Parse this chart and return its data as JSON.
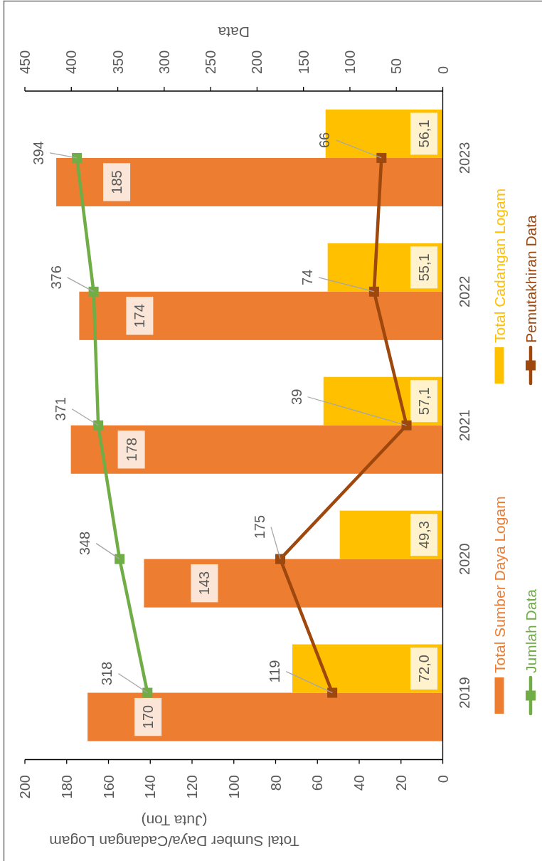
{
  "chart_data": {
    "type": "bar",
    "orientation": "horizontal",
    "categories": [
      "2023",
      "2022",
      "2021",
      "2020",
      "2019"
    ],
    "xlabel": "Total Sumber Daya/Cadangan Logam (Juta Ton)",
    "x2label": "Data",
    "xlim": [
      200,
      0
    ],
    "xticks": [
      0,
      20,
      40,
      60,
      80,
      100,
      120,
      140,
      160,
      180,
      200
    ],
    "x2lim": [
      450,
      0
    ],
    "x2ticks": [
      0,
      50,
      100,
      150,
      200,
      250,
      300,
      350,
      400,
      450
    ],
    "legend": "right",
    "marker": "square",
    "series": [
      {
        "name": "Total Sumber Daya Logam",
        "color": "#ed7d31",
        "values": [
          185,
          174,
          178,
          143,
          170
        ],
        "value_labels": [
          "185",
          "174",
          "178",
          "143",
          "170"
        ]
      },
      {
        "name": "Total Cadangan Logam",
        "color": "#ffc000",
        "values": [
          56.1,
          55.1,
          57.1,
          49.3,
          72.0
        ],
        "value_labels": [
          "56,1",
          "55,1",
          "57,1",
          "49,3",
          "72,0"
        ]
      },
      {
        "name": "Jumlah Data",
        "type": "line",
        "axis": "x2",
        "color": "#70ad47",
        "values": [
          394,
          376,
          371,
          348,
          318
        ],
        "value_labels": [
          "394",
          "376",
          "371",
          "348",
          "318"
        ]
      },
      {
        "name": "Pemutakhiran Data",
        "type": "line",
        "axis": "x2",
        "color": "#9e480e",
        "values": [
          66,
          74,
          39,
          175,
          119
        ],
        "value_labels": [
          "66",
          "74",
          "39",
          "175",
          "119"
        ]
      }
    ]
  }
}
